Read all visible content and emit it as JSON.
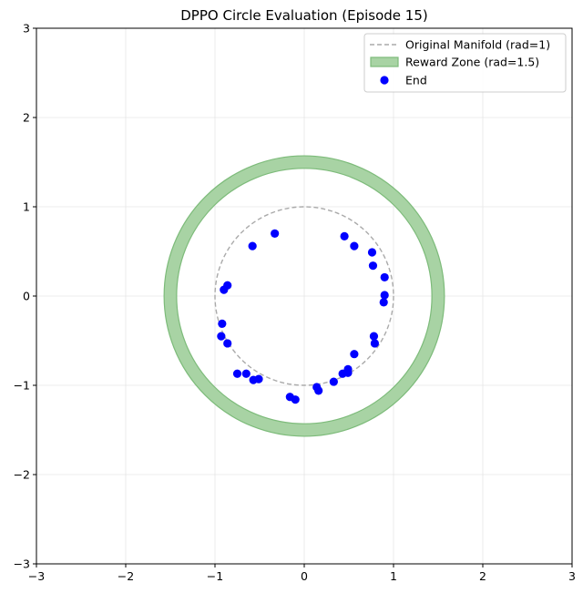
{
  "chart_data": {
    "type": "scatter",
    "title": "DPPO Circle Evaluation (Episode 15)",
    "xlabel": "",
    "ylabel": "",
    "xlim": [
      -3,
      3
    ],
    "ylim": [
      -3,
      3
    ],
    "grid": true,
    "x_ticks": [
      "−3",
      "−2",
      "−1",
      "0",
      "1",
      "2",
      "3"
    ],
    "y_ticks": [
      "−3",
      "−2",
      "−1",
      "0",
      "1",
      "2",
      "3"
    ],
    "legend_position": "top-right",
    "manifold": {
      "label": "Original Manifold (rad=1)",
      "radius": 1,
      "color": "#aaaaaa",
      "style": "dashed"
    },
    "reward_zone": {
      "label": "Reward Zone (rad=1.5)",
      "inner_radius": 1.43,
      "outer_radius": 1.57,
      "fill": "#a8d3a4",
      "edge": "#7dbb7a"
    },
    "series": [
      {
        "name": "End",
        "color": "#0000ff",
        "points": [
          {
            "x": -0.33,
            "y": 0.7
          },
          {
            "x": -0.58,
            "y": 0.56
          },
          {
            "x": 0.45,
            "y": 0.67
          },
          {
            "x": 0.56,
            "y": 0.56
          },
          {
            "x": 0.76,
            "y": 0.49
          },
          {
            "x": 0.77,
            "y": 0.34
          },
          {
            "x": 0.9,
            "y": 0.21
          },
          {
            "x": 0.9,
            "y": 0.01
          },
          {
            "x": 0.89,
            "y": -0.07
          },
          {
            "x": -0.86,
            "y": 0.12
          },
          {
            "x": -0.9,
            "y": 0.07
          },
          {
            "x": -0.92,
            "y": -0.31
          },
          {
            "x": -0.93,
            "y": -0.45
          },
          {
            "x": -0.86,
            "y": -0.53
          },
          {
            "x": 0.78,
            "y": -0.45
          },
          {
            "x": 0.79,
            "y": -0.53
          },
          {
            "x": 0.56,
            "y": -0.65
          },
          {
            "x": 0.49,
            "y": -0.82
          },
          {
            "x": 0.49,
            "y": -0.86
          },
          {
            "x": 0.43,
            "y": -0.87
          },
          {
            "x": 0.33,
            "y": -0.96
          },
          {
            "x": 0.14,
            "y": -1.02
          },
          {
            "x": 0.16,
            "y": -1.06
          },
          {
            "x": -0.75,
            "y": -0.87
          },
          {
            "x": -0.65,
            "y": -0.87
          },
          {
            "x": -0.57,
            "y": -0.94
          },
          {
            "x": -0.51,
            "y": -0.93
          },
          {
            "x": -0.16,
            "y": -1.13
          },
          {
            "x": -0.1,
            "y": -1.16
          }
        ]
      }
    ]
  }
}
